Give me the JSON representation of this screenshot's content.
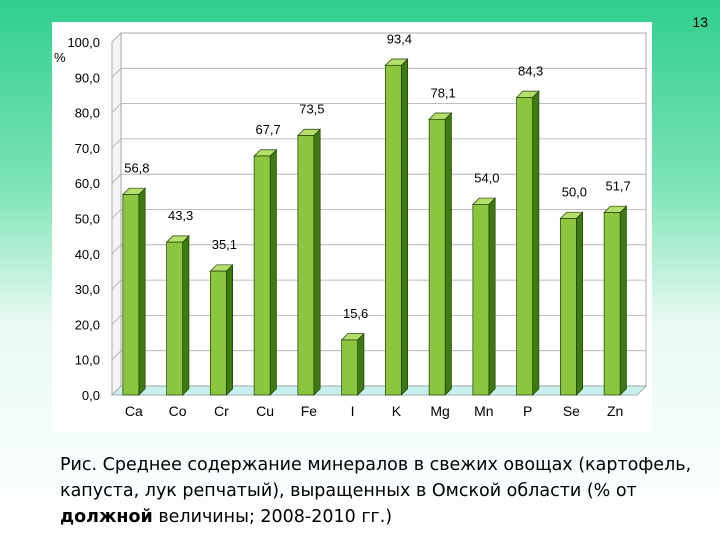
{
  "slide": {
    "number": "13"
  },
  "caption": {
    "before": "Рис. Среднее содержание минералов в свежих овощах (картофель, капуста, лук репчатый), выращенных в Омской области (% от ",
    "bold": "должной",
    "after": " величины; 2008-2010 гг.)"
  },
  "chart_data": {
    "type": "bar",
    "title": "",
    "xlabel": "",
    "ylabel": "%",
    "categories": [
      "Ca",
      "Co",
      "Cr",
      "Cu",
      "Fe",
      "I",
      "K",
      "Mg",
      "Mn",
      "P",
      "Se",
      "Zn"
    ],
    "values": [
      56.8,
      43.3,
      35.1,
      67.7,
      73.5,
      15.6,
      93.4,
      78.1,
      54.0,
      84.3,
      50.0,
      51.7
    ],
    "value_labels": [
      "56,8",
      "43,3",
      "35,1",
      "67,7",
      "73,5",
      "15,6",
      "93,4",
      "78,1",
      "54,0",
      "84,3",
      "50,0",
      "51,7"
    ],
    "ylim": [
      0,
      100
    ],
    "yticks": [
      "0,0",
      "10,0",
      "20,0",
      "30,0",
      "40,0",
      "50,0",
      "60,0",
      "70,0",
      "80,0",
      "90,0",
      "100,0"
    ],
    "grid": true,
    "legend": "none",
    "colors": {
      "bar_front": "#8cc63f",
      "bar_side": "#3d7a12",
      "bar_top": "#b5df6a",
      "bar_stroke": "#1f3d08",
      "floor": "#c6f1ee"
    }
  }
}
